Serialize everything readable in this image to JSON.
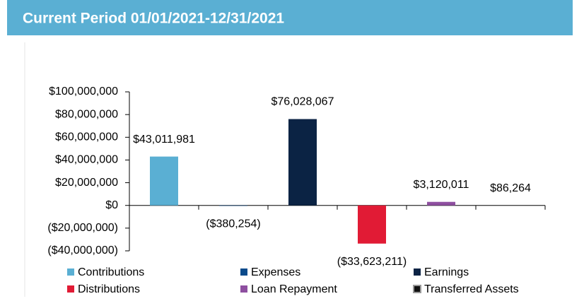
{
  "chart_data": {
    "type": "bar",
    "title": "Current Period 01/01/2021-12/31/2021",
    "series": [
      {
        "name": "Contributions",
        "color": "#5aafd3",
        "values": [
          43011981
        ],
        "value_labels": [
          "$43,011,981"
        ]
      },
      {
        "name": "Expenses",
        "color": "#0b4a8b",
        "values": [
          -380254
        ],
        "value_labels": [
          "($380,254)"
        ]
      },
      {
        "name": "Earnings",
        "color": "#0b2344",
        "values": [
          76028067
        ],
        "value_labels": [
          "$76,028,067"
        ]
      },
      {
        "name": "Distributions",
        "color": "#e11b35",
        "values": [
          -33623211
        ],
        "value_labels": [
          "($33,623,211)"
        ]
      },
      {
        "name": "Loan Repayment",
        "color": "#8e4fa0",
        "values": [
          3120011
        ],
        "value_labels": [
          "$3,120,011"
        ]
      },
      {
        "name": "Transferred Assets",
        "color": "#111111",
        "values": [
          86264
        ],
        "value_labels": [
          "$86,264"
        ]
      }
    ],
    "ylim": [
      -40000000,
      100000000
    ],
    "yticks": [
      {
        "value": -40000000,
        "label": "($40,000,000)"
      },
      {
        "value": -20000000,
        "label": "($20,000,000)"
      },
      {
        "value": 0,
        "label": "$0"
      },
      {
        "value": 20000000,
        "label": "$20,000,000"
      },
      {
        "value": 40000000,
        "label": "$40,000,000"
      },
      {
        "value": 60000000,
        "label": "$60,000,000"
      },
      {
        "value": 80000000,
        "label": "$80,000,000"
      },
      {
        "value": 100000000,
        "label": "$100,000,000"
      }
    ]
  }
}
